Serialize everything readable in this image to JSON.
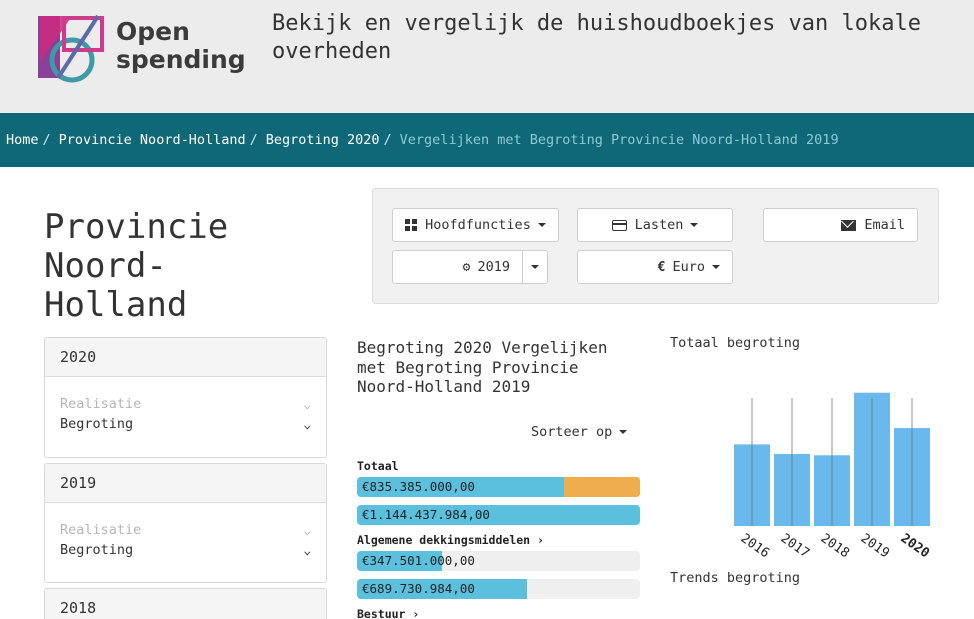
{
  "header": {
    "logo_text_line1": "Open",
    "logo_text_line2": "spending",
    "tagline": "Bekijk en vergelijk de huishoudboekjes van lokale overheden"
  },
  "breadcrumb": [
    "Home",
    "Provincie Noord-Holland",
    "Begroting 2020",
    "Vergelijken met Begroting Provincie Noord-Holland 2019"
  ],
  "page_title": "Provincie Noord-Holland",
  "controls": {
    "functions_label": "Hoofdfuncties",
    "costs_label": "Lasten",
    "email_label": "Email",
    "year_label": "2019",
    "currency_label": "Euro"
  },
  "years": [
    {
      "year": "2020",
      "options": [
        "Realisatie",
        "Begroting"
      ]
    },
    {
      "year": "2019",
      "options": [
        "Realisatie",
        "Begroting"
      ]
    },
    {
      "year": "2018",
      "options": []
    }
  ],
  "comparison": {
    "title": "Begroting 2020 Vergelijken met Begroting Provincie Noord-Holland 2019",
    "sort_label": "Sorteer op",
    "sections": [
      {
        "label": "Totaal",
        "values": [
          "€835.385.000,00",
          "€1.144.437.984,00"
        ],
        "fractions": [
          0.73,
          1.0
        ],
        "has_link": false
      },
      {
        "label": "Algemene dekkingsmiddelen",
        "values": [
          "€347.501.000,00",
          "€689.730.984,00"
        ],
        "fractions": [
          0.3,
          0.6
        ],
        "has_link": true
      },
      {
        "label": "Bestuur",
        "values": [],
        "fractions": [],
        "has_link": true
      }
    ]
  },
  "totals_chart": {
    "title": "Totaal begroting",
    "trends_label": "Trends begroting",
    "highlight_year": "2020",
    "colors": {
      "bar": "#6ab9ec",
      "line": "#777777"
    }
  },
  "chart_data": {
    "type": "bar",
    "title": "Totaal begroting",
    "categories": [
      "2016",
      "2017",
      "2018",
      "2019",
      "2020"
    ],
    "values": [
      0.6,
      0.53,
      0.52,
      0.98,
      0.72
    ],
    "ylim": [
      0,
      1
    ]
  },
  "icons": [
    "grid-icon",
    "credit-card-icon",
    "envelope-icon",
    "gear-icon",
    "euro-icon",
    "caret-down-icon",
    "chevron-down-icon",
    "chevron-right-icon"
  ]
}
